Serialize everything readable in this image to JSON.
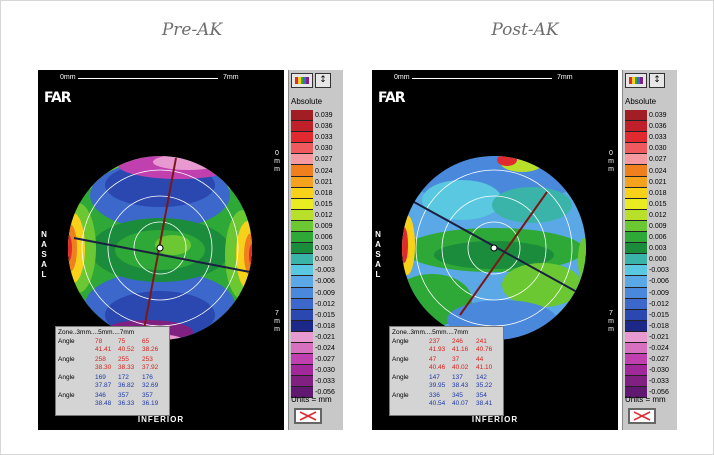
{
  "panels": [
    {
      "title": "Pre-AK",
      "scale_top_left": "0mm",
      "scale_top_right": "7mm",
      "logo": "FAR",
      "side_label": "NASAL",
      "bottom_label": "INFERIOR",
      "vscale_top": "0mm",
      "vscale_bottom": "7mm",
      "table": {
        "header": "Zone..3mm....5mm....7mm",
        "rows": [
          {
            "label": "Angle",
            "values": [
              "78",
              "75",
              "65"
            ],
            "sub": [
              "41.41",
              "40.52",
              "38.26"
            ],
            "color": "red"
          },
          {
            "label": "Angle",
            "values": [
              "258",
              "255",
              "253"
            ],
            "sub": [
              "38.30",
              "38.33",
              "37.92"
            ],
            "color": "red"
          },
          {
            "label": "Angle",
            "values": [
              "169",
              "172",
              "176"
            ],
            "sub": [
              "37.87",
              "36.82",
              "32.69"
            ],
            "color": "blue"
          },
          {
            "label": "Angle",
            "values": [
              "346",
              "357",
              "357"
            ],
            "sub": [
              "38.48",
              "36.33",
              "36.19"
            ],
            "color": "blue"
          }
        ]
      }
    },
    {
      "title": "Post-AK",
      "scale_top_left": "0mm",
      "scale_top_right": "7mm",
      "logo": "FAR",
      "side_label": "NASAL",
      "bottom_label": "INFERIOR",
      "vscale_top": "0mm",
      "vscale_bottom": "7mm",
      "table": {
        "header": "Zone..3mm....5mm....7mm",
        "rows": [
          {
            "label": "Angle",
            "values": [
              "237",
              "246",
              "241"
            ],
            "sub": [
              "41.93",
              "41.16",
              "40.76"
            ],
            "color": "red"
          },
          {
            "label": "Angle",
            "values": [
              "47",
              "37",
              "44"
            ],
            "sub": [
              "40.46",
              "40.02",
              "41.10"
            ],
            "color": "red"
          },
          {
            "label": "Angle",
            "values": [
              "147",
              "137",
              "142"
            ],
            "sub": [
              "39.95",
              "38.43",
              "35.22"
            ],
            "color": "blue"
          },
          {
            "label": "Angle",
            "values": [
              "336",
              "345",
              "354"
            ],
            "sub": [
              "40.54",
              "40.07",
              "38.41"
            ],
            "color": "blue"
          }
        ]
      }
    }
  ],
  "legend": {
    "title": "Absolute",
    "units": "Units = mm",
    "scale": [
      {
        "label": "0.039",
        "color": "#a01e24"
      },
      {
        "label": "0.036",
        "color": "#c0202a"
      },
      {
        "label": "0.033",
        "color": "#e02a30"
      },
      {
        "label": "0.030",
        "color": "#ee5a5e"
      },
      {
        "label": "0.027",
        "color": "#f59aa0"
      },
      {
        "label": "0.024",
        "color": "#f0801e"
      },
      {
        "label": "0.021",
        "color": "#f5a21e"
      },
      {
        "label": "0.018",
        "color": "#f8d21a"
      },
      {
        "label": "0.015",
        "color": "#e8ec20"
      },
      {
        "label": "0.012",
        "color": "#b8e02a"
      },
      {
        "label": "0.009",
        "color": "#6cc832"
      },
      {
        "label": "0.006",
        "color": "#2ea836"
      },
      {
        "label": "0.003",
        "color": "#1a8c3c"
      },
      {
        "label": "0.000",
        "color": "#3ab4a8"
      },
      {
        "label": "-0.003",
        "color": "#5ac8e0"
      },
      {
        "label": "-0.006",
        "color": "#5aa8e6"
      },
      {
        "label": "-0.009",
        "color": "#4a88dc"
      },
      {
        "label": "-0.012",
        "color": "#3c68cc"
      },
      {
        "label": "-0.015",
        "color": "#2a48b0"
      },
      {
        "label": "-0.018",
        "color": "#1c2888"
      },
      {
        "label": "-0.021",
        "color": "#e89ad0"
      },
      {
        "label": "-0.024",
        "color": "#d870c0"
      },
      {
        "label": "-0.027",
        "color": "#c040b0"
      },
      {
        "label": "-0.030",
        "color": "#a02898"
      },
      {
        "label": "-0.033",
        "color": "#802080"
      },
      {
        "label": "-0.056",
        "color": "#601870"
      }
    ]
  }
}
